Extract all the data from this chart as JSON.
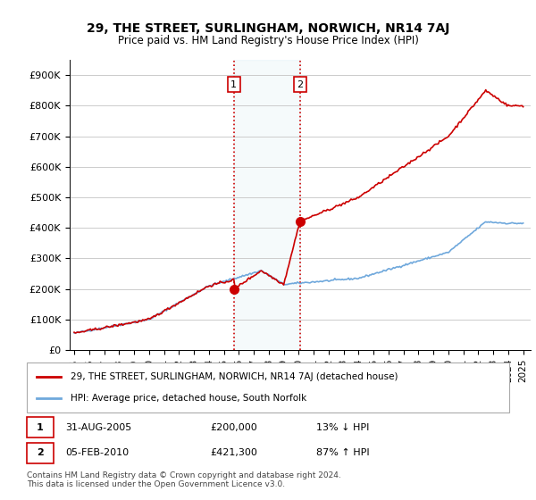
{
  "title": "29, THE STREET, SURLINGHAM, NORWICH, NR14 7AJ",
  "subtitle": "Price paid vs. HM Land Registry's House Price Index (HPI)",
  "ylabel_ticks": [
    "£0",
    "£100K",
    "£200K",
    "£300K",
    "£400K",
    "£500K",
    "£600K",
    "£700K",
    "£800K",
    "£900K"
  ],
  "ytick_values": [
    0,
    100000,
    200000,
    300000,
    400000,
    500000,
    600000,
    700000,
    800000,
    900000
  ],
  "ylim": [
    0,
    950000
  ],
  "xlim_start": 1995.0,
  "xlim_end": 2025.5,
  "hpi_color": "#6fa8dc",
  "price_color": "#cc0000",
  "transaction1_date": 2005.667,
  "transaction1_price": 200000,
  "transaction2_date": 2010.083,
  "transaction2_price": 421300,
  "legend_label1": "29, THE STREET, SURLINGHAM, NORWICH, NR14 7AJ (detached house)",
  "legend_label2": "HPI: Average price, detached house, South Norfolk",
  "table_row1_num": "1",
  "table_row1_date": "31-AUG-2005",
  "table_row1_price": "£200,000",
  "table_row1_hpi": "13% ↓ HPI",
  "table_row2_num": "2",
  "table_row2_date": "05-FEB-2010",
  "table_row2_price": "£421,300",
  "table_row2_hpi": "87% ↑ HPI",
  "footnote": "Contains HM Land Registry data © Crown copyright and database right 2024.\nThis data is licensed under the Open Government Licence v3.0.",
  "background_color": "#ffffff",
  "plot_bg_color": "#ffffff",
  "grid_color": "#cccccc"
}
